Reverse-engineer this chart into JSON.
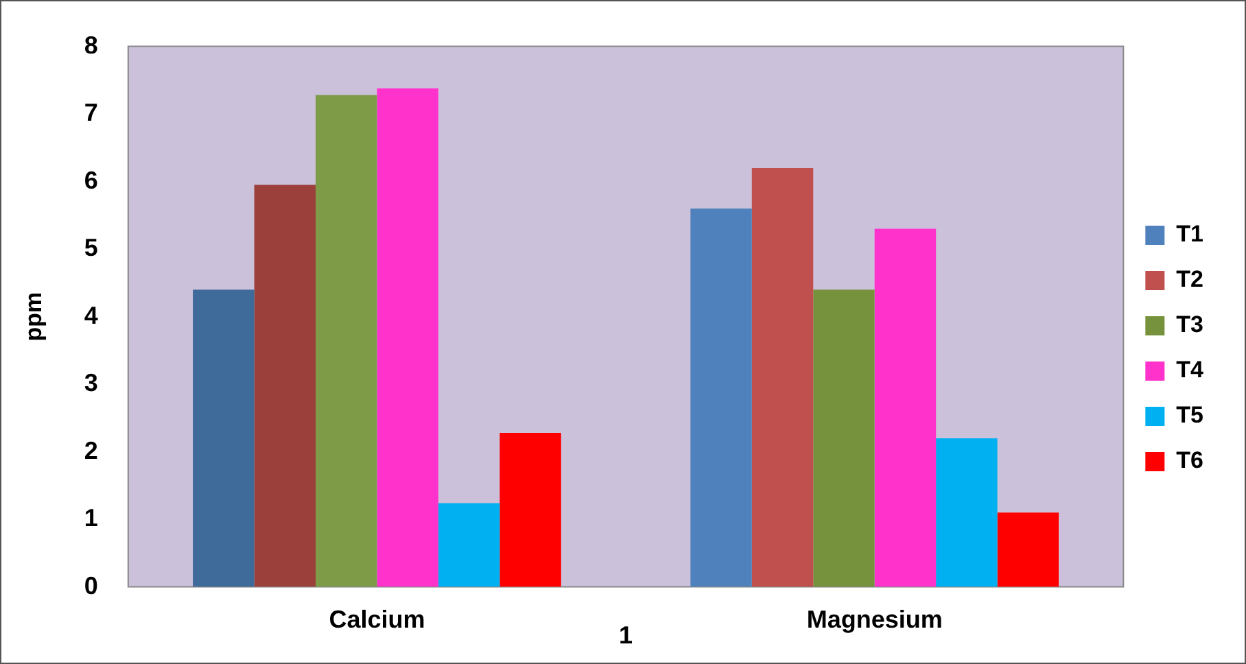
{
  "chart_data": {
    "type": "bar",
    "xlabel": "1",
    "ylabel": "ppm",
    "categories": [
      "Calcium",
      "Magnesium"
    ],
    "series": [
      {
        "name": "T1",
        "color": "#4f81bd",
        "colors": [
          "#3f6b9b",
          "#4f81bd"
        ],
        "values": [
          4.4,
          5.6
        ]
      },
      {
        "name": "T2",
        "color": "#c0504d",
        "colors": [
          "#9c403c",
          "#c0504d"
        ],
        "values": [
          5.95,
          6.2
        ]
      },
      {
        "name": "T3",
        "color": "#76923c",
        "colors": [
          "#7e9b48",
          "#76923c"
        ],
        "values": [
          7.28,
          4.4
        ]
      },
      {
        "name": "T4",
        "color": "#ff33cc",
        "values": [
          7.38,
          5.3
        ]
      },
      {
        "name": "T5",
        "color": "#00b0f0",
        "values": [
          1.24,
          2.2
        ]
      },
      {
        "name": "T6",
        "color": "#ff0000",
        "values": [
          2.28,
          1.1
        ]
      }
    ],
    "ylim": [
      0,
      8
    ],
    "yticks": [
      0,
      1,
      2,
      3,
      4,
      5,
      6,
      7,
      8
    ],
    "grid": false,
    "legend": "right"
  }
}
